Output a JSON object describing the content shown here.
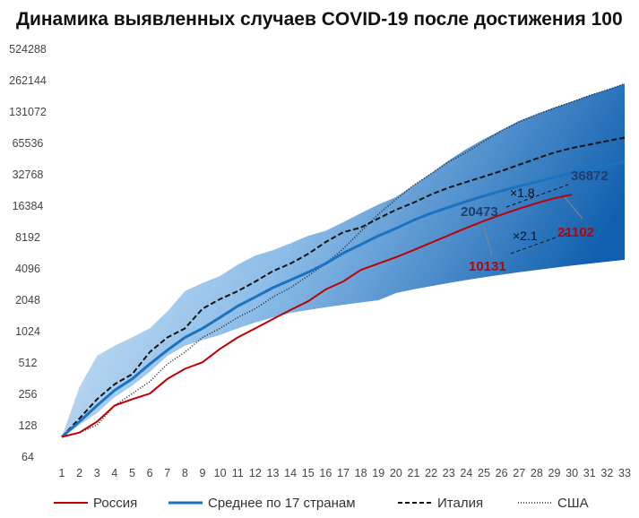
{
  "chart_data": {
    "type": "line",
    "title": "Динамика выявленных случаев COVID-19 после достижения 100",
    "y_scale": "log2",
    "y_ticks": [
      64,
      128,
      256,
      512,
      1024,
      2048,
      4096,
      8192,
      16384,
      32768,
      65536,
      131072,
      262144,
      524288
    ],
    "x_ticks": [
      1,
      2,
      3,
      4,
      5,
      6,
      7,
      8,
      9,
      10,
      11,
      12,
      13,
      14,
      15,
      16,
      17,
      18,
      19,
      20,
      21,
      22,
      23,
      24,
      25,
      26,
      27,
      28,
      29,
      30,
      31,
      32,
      33
    ],
    "xlim": [
      1,
      33
    ],
    "ylim": [
      64,
      524288
    ],
    "grid": false,
    "legend_position": "bottom",
    "series": [
      {
        "name": "Россия",
        "color": "#c00000",
        "style": "solid",
        "x": [
          1,
          2,
          3,
          4,
          5,
          6,
          7,
          8,
          9,
          10,
          11,
          12,
          13,
          14,
          15,
          16,
          17,
          18,
          19,
          20,
          21,
          22,
          23,
          24,
          25,
          26,
          27,
          28,
          29,
          30
        ],
        "values": [
          100,
          110,
          140,
          200,
          230,
          260,
          360,
          450,
          520,
          700,
          900,
          1100,
          1350,
          1650,
          2000,
          2600,
          3100,
          4000,
          4600,
          5300,
          6200,
          7300,
          8600,
          10131,
          11800,
          13600,
          15500,
          17500,
          19500,
          21102
        ]
      },
      {
        "name": "Среднее по 17 странам",
        "color": "#1a72c2",
        "style": "solid",
        "x": [
          1,
          2,
          3,
          4,
          5,
          6,
          7,
          8,
          9,
          10,
          11,
          12,
          13,
          14,
          15,
          16,
          17,
          18,
          19,
          20,
          21,
          22,
          23,
          24,
          25,
          26,
          27,
          28,
          29,
          30,
          31,
          32,
          33
        ],
        "values": [
          100,
          140,
          200,
          280,
          360,
          500,
          680,
          900,
          1100,
          1400,
          1800,
          2200,
          2700,
          3200,
          3800,
          4600,
          5800,
          7000,
          8500,
          10000,
          12000,
          14000,
          16000,
          18200,
          20473,
          23000,
          25500,
          28000,
          31000,
          34000,
          36872,
          40000,
          44000
        ]
      },
      {
        "name": "Италия",
        "color": "#111111",
        "style": "dashed",
        "x": [
          1,
          2,
          3,
          4,
          5,
          6,
          7,
          8,
          9,
          10,
          11,
          12,
          13,
          14,
          15,
          16,
          17,
          18,
          19,
          20,
          21,
          22,
          23,
          24,
          25,
          26,
          27,
          28,
          29,
          30,
          31,
          32,
          33
        ],
        "values": [
          100,
          150,
          230,
          320,
          400,
          650,
          900,
          1100,
          1700,
          2100,
          2500,
          3100,
          3900,
          4600,
          5700,
          7400,
          9200,
          10200,
          12500,
          15100,
          17700,
          21200,
          24700,
          27900,
          31500,
          35700,
          41000,
          47000,
          53600,
          59100,
          63900,
          69200,
          74400
        ]
      },
      {
        "name": "США",
        "color": "#222222",
        "style": "dotted",
        "x": [
          1,
          2,
          3,
          4,
          5,
          6,
          7,
          8,
          9,
          10,
          11,
          12,
          13,
          14,
          15,
          16,
          17,
          18,
          19,
          20,
          21,
          22,
          23,
          24,
          25,
          26,
          27,
          28,
          29,
          30,
          31,
          32,
          33
        ],
        "values": [
          100,
          110,
          130,
          200,
          260,
          340,
          500,
          650,
          900,
          1100,
          1400,
          1700,
          2200,
          2700,
          3500,
          4600,
          6400,
          9400,
          13700,
          19100,
          26000,
          33500,
          43700,
          53700,
          68600,
          86600,
          105000,
          124000,
          143000,
          164000,
          189000,
          213000,
          245000
        ]
      }
    ],
    "band": {
      "description_color_top": "#1565b8",
      "description_color_bottom": "#d6e6f5",
      "upper": [
        100,
        300,
        600,
        750,
        900,
        1100,
        1600,
        2500,
        3000,
        3500,
        4500,
        5500,
        6200,
        7200,
        8500,
        9500,
        11500,
        14000,
        17000,
        20000,
        26000,
        34000,
        45000,
        58000,
        72000,
        88000,
        108000,
        125000,
        145000,
        165000,
        190000,
        215000,
        245000
      ],
      "lower": [
        100,
        130,
        170,
        240,
        310,
        420,
        600,
        750,
        850,
        950,
        1100,
        1250,
        1400,
        1550,
        1650,
        1750,
        1850,
        1950,
        2050,
        2400,
        2600,
        2800,
        3000,
        3200,
        3400,
        3600,
        3800,
        4000,
        4200,
        4400,
        4600,
        4800,
        5000
      ]
    },
    "annotations": {
      "russia_labels": [
        "10131",
        "21102"
      ],
      "average_labels": [
        "20473",
        "36872"
      ],
      "ratio_labels": [
        "×2.1",
        "×1.8"
      ]
    }
  },
  "legend": {
    "items": [
      {
        "label": "Россия"
      },
      {
        "label": "Среднее по 17 странам"
      },
      {
        "label": "Италия"
      },
      {
        "label": "США"
      }
    ]
  }
}
